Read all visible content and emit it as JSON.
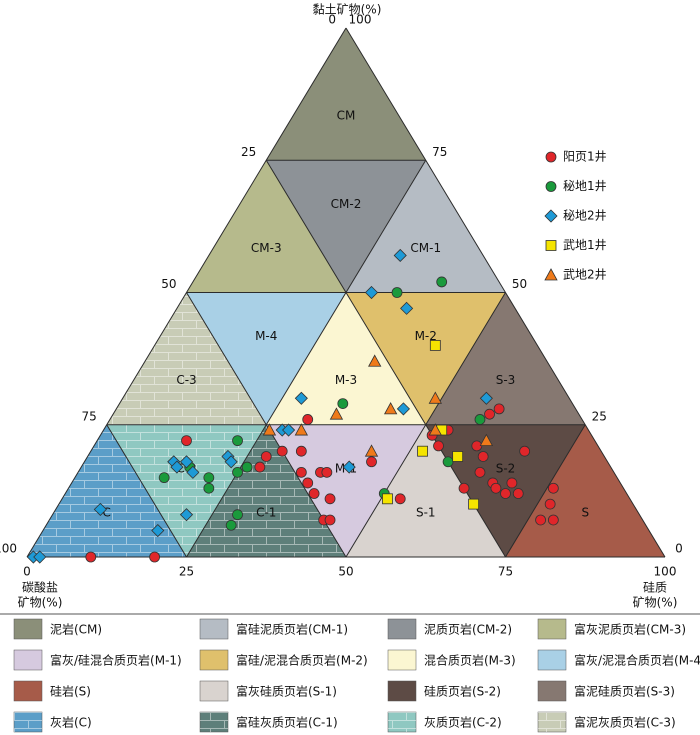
{
  "chart_data": {
    "type": "ternary",
    "top_axis_title": "黏土矿物(%)",
    "left_axis_title": [
      "碳酸盐",
      "矿物(%)"
    ],
    "right_axis_title": [
      "硅质",
      "矿物(%)"
    ],
    "clay_ticks": [
      0,
      25,
      50,
      75,
      100
    ],
    "carbonate_ticks": [
      0,
      25,
      50,
      75,
      100
    ],
    "silica_ticks": [
      0,
      25,
      50,
      75,
      100
    ],
    "regions": [
      {
        "label": "CM",
        "legend_label": "泥岩(CM)",
        "color": "#8b8f79",
        "label_color": "#111"
      },
      {
        "label": "CM-1",
        "legend_label": "富硅泥质页岩(CM-1)",
        "color": "#b5bcc4",
        "label_color": "#111"
      },
      {
        "label": "CM-2",
        "legend_label": "泥质页岩(CM-2)",
        "color": "#8d9297",
        "label_color": "#111"
      },
      {
        "label": "CM-3",
        "legend_label": "富灰泥质页岩(CM-3)",
        "color": "#b6ba8c",
        "label_color": "#111"
      },
      {
        "label": "M-1",
        "legend_label": "富灰/硅混合质页岩(M-1)",
        "color": "#d6cadf",
        "label_color": "#2b6fc4"
      },
      {
        "label": "M-2",
        "legend_label": "富硅/泥混合质页岩(M-2)",
        "color": "#dfc06c",
        "label_color": "#2b6fc4"
      },
      {
        "label": "M-3",
        "legend_label": "混合质页岩(M-3)",
        "color": "#fbf6d2",
        "label_color": "#2b6fc4"
      },
      {
        "label": "M-4",
        "legend_label": "富灰/泥混合质页岩(M-4)",
        "color": "#a9d0e6",
        "label_color": "#2b6fc4"
      },
      {
        "label": "S",
        "legend_label": "硅岩(S)",
        "color": "#a65b49",
        "label_color": "#ffffff"
      },
      {
        "label": "S-1",
        "legend_label": "富灰硅质页岩(S-1)",
        "color": "#d9d3cf",
        "label_color": "#ffffff"
      },
      {
        "label": "S-2",
        "legend_label": "硅质页岩(S-2)",
        "color": "#5d4b45",
        "label_color": "#ffffff"
      },
      {
        "label": "S-3",
        "legend_label": "富泥硅质页岩(S-3)",
        "color": "#867871",
        "label_color": "#ffffff"
      },
      {
        "label": "C",
        "legend_label": "灰岩(C)",
        "color": "#5b9ec8",
        "label_color": "#f2e23a",
        "texture": "brick"
      },
      {
        "label": "C-1",
        "legend_label": "富硅灰质页岩(C-1)",
        "color": "#5e7f7a",
        "label_color": "#ffffff",
        "texture": "brick"
      },
      {
        "label": "C-2",
        "legend_label": "灰质页岩(C-2)",
        "color": "#8fc8c1",
        "label_color": "#f2e23a",
        "texture": "brick"
      },
      {
        "label": "C-3",
        "legend_label": "富泥灰质页岩(C-3)",
        "color": "#c8ccb6",
        "label_color": "#f2e23a",
        "texture": "brick"
      }
    ],
    "series": [
      {
        "name": "阳页1井",
        "color": "#e0262a",
        "marker": "circle",
        "clay": [
          0,
          0,
          22,
          17,
          19,
          20,
          20,
          16,
          26,
          14,
          12,
          16,
          7,
          7,
          16,
          11,
          18,
          11,
          23,
          21,
          24,
          21,
          19,
          27,
          28,
          13,
          14,
          13,
          12,
          14,
          12,
          20,
          13,
          10,
          7,
          7,
          16
        ],
        "silica": [
          10,
          20,
          14,
          28,
          28,
          30,
          33,
          35,
          31,
          37,
          39,
          38,
          43,
          44,
          39,
          42,
          45,
          53,
          52,
          54,
          54,
          60,
          62,
          59,
          60,
          62,
          66,
          67,
          69,
          69,
          71,
          68,
          76,
          77,
          77,
          79,
          63
        ]
      },
      {
        "name": "秘地1井",
        "color": "#1a9a3c",
        "marker": "circle",
        "clay": [
          52,
          50,
          29,
          22,
          17,
          15,
          15,
          13,
          16,
          17,
          8,
          6,
          12,
          18,
          26
        ],
        "silica": [
          39,
          33,
          35,
          22,
          17,
          14,
          21,
          22,
          25,
          26,
          29,
          29,
          50,
          57,
          58
        ]
      },
      {
        "name": "秘地2井",
        "color": "#1e9ad6",
        "marker": "diamond",
        "clay": [
          57,
          50,
          47,
          30,
          24,
          24,
          17,
          18,
          17,
          18,
          16,
          19,
          18,
          8,
          9,
          5,
          0,
          0,
          30,
          28
        ],
        "silica": [
          30,
          29,
          36,
          28,
          28,
          29,
          42,
          14,
          15,
          16,
          18,
          22,
          23,
          21,
          7,
          18,
          1,
          2,
          57,
          45
        ]
      },
      {
        "name": "武地1井",
        "color": "#f5e400",
        "marker": "square",
        "clay": [
          40,
          24,
          20,
          19,
          11,
          10
        ],
        "silica": [
          44,
          53,
          52,
          58,
          51,
          65
        ]
      },
      {
        "name": "武地2井",
        "color": "#ef7a1a",
        "marker": "triangle",
        "clay": [
          37,
          27,
          28,
          30,
          24,
          24,
          20,
          22,
          24
        ],
        "silica": [
          36,
          35,
          43,
          49,
          31,
          26,
          44,
          61,
          52
        ]
      }
    ]
  }
}
